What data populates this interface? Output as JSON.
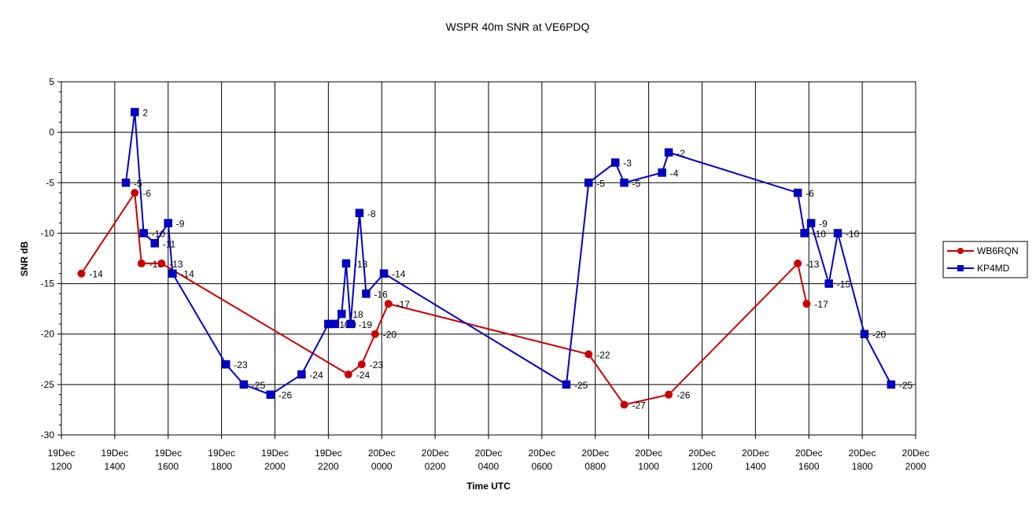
{
  "chart_data": {
    "type": "line",
    "title": "WSPR 40m SNR at VE6PDQ",
    "xlabel": "Time UTC",
    "ylabel": "SNR dB",
    "ylim": [
      -30,
      5
    ],
    "yticks": [
      5,
      0,
      -5,
      -10,
      -15,
      -20,
      -25,
      -30
    ],
    "xlim": [
      "19Dec 1200",
      "20Dec 2000"
    ],
    "xticks": [
      [
        "19Dec",
        "1200"
      ],
      [
        "19Dec",
        "1400"
      ],
      [
        "19Dec",
        "1600"
      ],
      [
        "19Dec",
        "1800"
      ],
      [
        "19Dec",
        "2000"
      ],
      [
        "19Dec",
        "2200"
      ],
      [
        "20Dec",
        "0000"
      ],
      [
        "20Dec",
        "0200"
      ],
      [
        "20Dec",
        "0400"
      ],
      [
        "20Dec",
        "0600"
      ],
      [
        "20Dec",
        "0800"
      ],
      [
        "20Dec",
        "1000"
      ],
      [
        "20Dec",
        "1200"
      ],
      [
        "20Dec",
        "1400"
      ],
      [
        "20Dec",
        "1600"
      ],
      [
        "20Dec",
        "1800"
      ],
      [
        "20Dec",
        "2000"
      ]
    ],
    "grid": true,
    "legend_position": "right",
    "series": [
      {
        "name": "WB6RQN",
        "color": "#cc0000",
        "marker": "circle",
        "x": [
          "19Dec 1245",
          "19Dec 1445",
          "19Dec 1500",
          "19Dec 1545",
          "19Dec 2245",
          "19Dec 2315",
          "19Dec 2345",
          "20Dec 0015",
          "20Dec 0745",
          "20Dec 0905",
          "20Dec 1045",
          "20Dec 1535",
          "20Dec 1555"
        ],
        "values": [
          -14,
          -6,
          -13,
          -13,
          -24,
          -23,
          -20,
          -17,
          -22,
          -27,
          -26,
          -13,
          -17
        ]
      },
      {
        "name": "KP4MD",
        "color": "#0000cc",
        "marker": "square",
        "x": [
          "19Dec 1425",
          "19Dec 1445",
          "19Dec 1505",
          "19Dec 1530",
          "19Dec 1600",
          "19Dec 1610",
          "19Dec 1810",
          "19Dec 1850",
          "19Dec 1950",
          "19Dec 2100",
          "19Dec 2200",
          "19Dec 2215",
          "19Dec 2230",
          "19Dec 2240",
          "19Dec 2250",
          "19Dec 2310",
          "19Dec 2325",
          "20Dec 0005",
          "20Dec 0655",
          "20Dec 0745",
          "20Dec 0845",
          "20Dec 0905",
          "20Dec 1030",
          "20Dec 1045",
          "20Dec 1535",
          "20Dec 1550",
          "20Dec 1605",
          "20Dec 1645",
          "20Dec 1705",
          "20Dec 1805",
          "20Dec 1905"
        ],
        "values": [
          -5,
          2,
          -10,
          -11,
          -9,
          -14,
          -23,
          -25,
          -26,
          -24,
          -19,
          -19,
          -18,
          -13,
          -19,
          -8,
          -16,
          -14,
          -25,
          -5,
          -3,
          -5,
          -4,
          -2,
          -6,
          -10,
          -9,
          -15,
          -10,
          -20,
          -25
        ]
      }
    ],
    "data_labels": {
      "WB6RQN": [
        "-14",
        "-6",
        "-13",
        "-13",
        "-24",
        "-23",
        "-20",
        "-17",
        "-22",
        "-27",
        "-26",
        "-13",
        "-17"
      ],
      "KP4MD": [
        "-5",
        "2",
        "-10",
        "-11",
        "-9",
        "-14",
        "-23",
        "-25",
        "-26",
        "-24",
        "-19",
        "-19",
        "-18",
        "-13",
        "-19",
        "-8",
        "-16",
        "-14",
        "-25",
        "-5",
        "-3",
        "-5",
        "-4",
        "-2",
        "-6",
        "-10",
        "-9",
        "-15",
        "-10",
        "-20",
        "-25"
      ]
    }
  }
}
